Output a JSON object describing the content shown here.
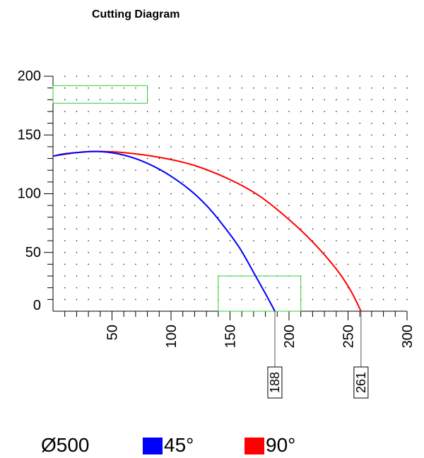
{
  "chart_data": {
    "type": "line",
    "title": "Cutting Diagram",
    "xlim": [
      0,
      300
    ],
    "ylim": [
      0,
      200
    ],
    "x_ticks": [
      "50",
      "100",
      "150",
      "200",
      "250",
      "300"
    ],
    "y_ticks": [
      "0",
      "50",
      "100",
      "150",
      "200"
    ],
    "grid": "dots",
    "series": [
      {
        "name": "45°",
        "color": "#0000ff",
        "x": [
          0,
          10,
          20,
          37,
          55,
          75,
          95,
          115,
          130,
          145,
          158,
          170,
          180,
          188
        ],
        "y": [
          132,
          134,
          135,
          136,
          134,
          128,
          118,
          104,
          90,
          72,
          54,
          33,
          15,
          0
        ]
      },
      {
        "name": "90°",
        "color": "#ff0000",
        "x": [
          0,
          20,
          37,
          60,
          90,
          120,
          150,
          175,
          200,
          220,
          240,
          252,
          261
        ],
        "y": [
          132,
          135,
          136,
          135,
          131,
          124,
          112,
          98,
          78,
          59,
          36,
          18,
          0
        ]
      }
    ],
    "highlight_boxes": [
      {
        "x0": 0,
        "y0": 177,
        "x1": 80,
        "y1": 192,
        "color": "#33cc33"
      },
      {
        "x0": 140,
        "y0": 0,
        "x1": 210,
        "y1": 30,
        "color": "#33cc33"
      }
    ],
    "markers": [
      {
        "x": 188,
        "label": "188"
      },
      {
        "x": 261,
        "label": "261"
      }
    ]
  },
  "legend": {
    "diameter": "Ø500",
    "items": [
      {
        "label": "45°",
        "color": "#0000ff"
      },
      {
        "label": "90°",
        "color": "#ff0000"
      }
    ]
  }
}
